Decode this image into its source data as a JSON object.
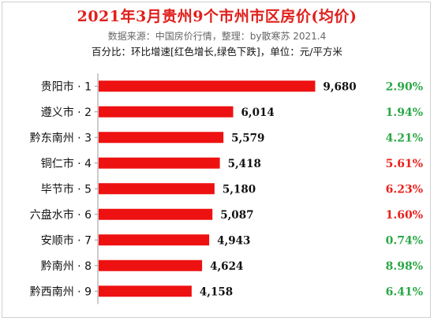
{
  "header": {
    "title": "2021年3月贵州9个市州市区房价(均价)",
    "source": "数据来源：中国房价行情，整理：by散寒苏 2021.4",
    "note": "百分比：环比增速[红色增长,绿色下跌]，单位：元/平方米"
  },
  "colors": {
    "bar": "#ee1111",
    "up": "#e8201c",
    "down": "#2aa745",
    "axis": "#999999"
  },
  "chart_data": {
    "type": "bar",
    "orientation": "horizontal",
    "categories": [
      "贵阳市 · 1",
      "遵义市 · 2",
      "黔东南州 · 3",
      "铜仁市 · 4",
      "毕节市 · 5",
      "六盘水市 · 6",
      "安顺市 · 7",
      "黔南州 · 8",
      "黔西南州 · 9"
    ],
    "values": [
      9680,
      6014,
      5579,
      5418,
      5180,
      5087,
      4943,
      4624,
      4158
    ],
    "value_labels": [
      "9,680",
      "6,014",
      "5,579",
      "5,418",
      "5,180",
      "5,087",
      "4,943",
      "4,624",
      "4,158"
    ],
    "mom_growth_labels": [
      "2.90%",
      "1.94%",
      "4.21%",
      "5.61%",
      "6.23%",
      "1.60%",
      "0.74%",
      "8.98%",
      "6.41%"
    ],
    "mom_growth_colors": [
      "#2aa745",
      "#2aa745",
      "#2aa745",
      "#e8201c",
      "#e8201c",
      "#e8201c",
      "#2aa745",
      "#2aa745",
      "#2aa745"
    ],
    "xlim": [
      0,
      10300
    ],
    "grid": false,
    "legend": "none"
  }
}
